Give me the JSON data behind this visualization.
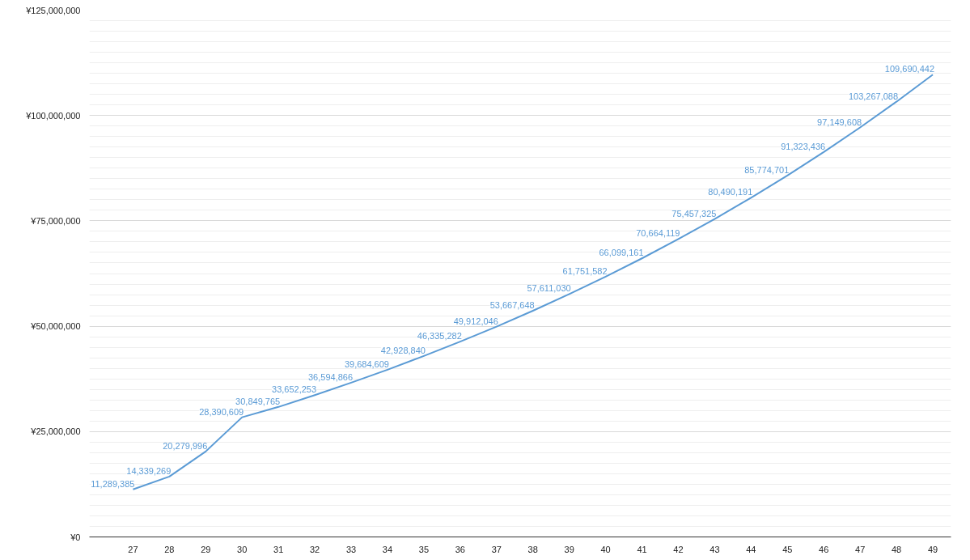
{
  "chart_data": {
    "type": "line",
    "categories": [
      "27",
      "28",
      "29",
      "30",
      "31",
      "32",
      "33",
      "34",
      "35",
      "36",
      "37",
      "38",
      "39",
      "40",
      "41",
      "42",
      "43",
      "44",
      "45",
      "46",
      "47",
      "48",
      "49"
    ],
    "series": [
      {
        "color": "#5b9bd5",
        "values": [
          11289385,
          14339269,
          20279996,
          28390609,
          30849765,
          33652253,
          36594866,
          39684609,
          42928840,
          46335282,
          49912046,
          53667648,
          57611030,
          61751582,
          66099161,
          70664119,
          75457325,
          80490191,
          85774701,
          91323436,
          97149608,
          103267088,
          109690442
        ]
      }
    ],
    "value_labels": [
      "11,289,385",
      "14,339,269",
      "20,279,996",
      "28,390,609",
      "30,849,765",
      "33,652,253",
      "36,594,866",
      "39,684,609",
      "42,928,840",
      "46,335,282",
      "49,912,046",
      "53,667,648",
      "57,611,030",
      "61,751,582",
      "66,099,161",
      "70,664,119",
      "75,457,325",
      "80,490,191",
      "85,774,701",
      "91,323,436",
      "97,149,608",
      "103,267,088",
      "109,690,442"
    ],
    "ylim": [
      0,
      125000000
    ],
    "yticks": [
      {
        "value": 0,
        "label": "¥0"
      },
      {
        "value": 25000000,
        "label": "¥25,000,000"
      },
      {
        "value": 50000000,
        "label": "¥50,000,000"
      },
      {
        "value": 75000000,
        "label": "¥75,000,000"
      },
      {
        "value": 100000000,
        "label": "¥100,000,000"
      },
      {
        "value": 125000000,
        "label": "¥125,000,000"
      }
    ],
    "grid": "y",
    "marker": "none",
    "line_style": "solid"
  }
}
